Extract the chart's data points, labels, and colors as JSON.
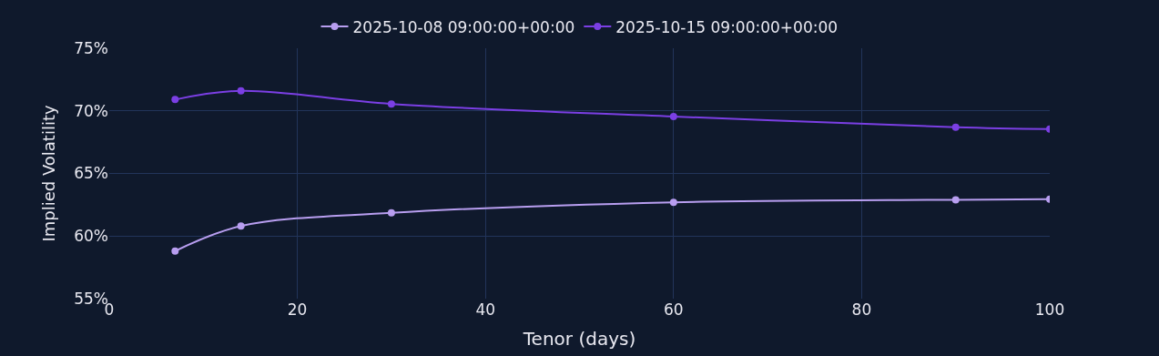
{
  "chart_data": {
    "type": "line",
    "xlabel": "Tenor (days)",
    "ylabel": "Implied Volatility",
    "x": [
      7,
      14,
      30,
      60,
      90,
      100
    ],
    "series": [
      {
        "name": "2025-10-08 09:00:00+00:00",
        "color": "#b89ef0",
        "values": [
          58.8,
          60.8,
          61.85,
          62.7,
          62.9,
          62.95
        ]
      },
      {
        "name": "2025-10-15 09:00:00+00:00",
        "color": "#7b3fe4",
        "values": [
          70.9,
          71.6,
          70.55,
          69.55,
          68.7,
          68.55
        ]
      }
    ],
    "xlim": [
      0,
      100
    ],
    "xticks": [
      0,
      20,
      40,
      60,
      80,
      100
    ],
    "ylim": [
      55,
      75
    ],
    "yticks": [
      {
        "value": 55,
        "label": "55%"
      },
      {
        "value": 60,
        "label": "60%"
      },
      {
        "value": 65,
        "label": "65%"
      },
      {
        "value": 70,
        "label": "70%"
      },
      {
        "value": 75,
        "label": "75%"
      }
    ],
    "grid": true,
    "legend": "top",
    "marker": "circle",
    "line_style": "solid"
  }
}
